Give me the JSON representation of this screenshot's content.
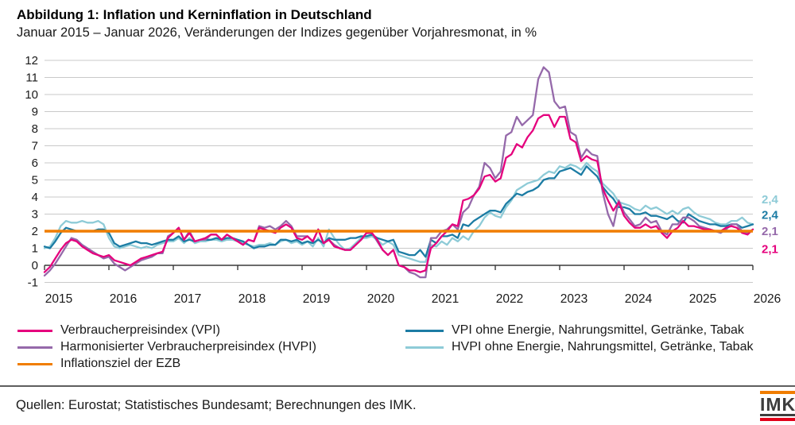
{
  "header": {
    "title": "Abbildung 1: Inflation und Kerninflation in Deutschland",
    "subtitle": "Januar 2015 – Januar 2026, Veränderungen der Indizes gegenüber Vorjahresmonat, in %"
  },
  "chart_data": {
    "type": "line",
    "x_unit": "month",
    "x_start": "Januar 2015",
    "x_end": "Januar 2026",
    "year_labels": [
      "2015",
      "2016",
      "2017",
      "2018",
      "2019",
      "2020",
      "2021",
      "2022",
      "2023",
      "2024",
      "2025",
      "2026"
    ],
    "yticks": [
      12,
      11,
      10,
      9,
      8,
      7,
      6,
      5,
      4,
      3,
      2,
      1,
      0,
      -1
    ],
    "ylim": [
      -1,
      12
    ],
    "grid": true,
    "colors": {
      "grid": "#c9c9c9",
      "axis": "#3a3a3a",
      "text": "#1a1a1a"
    },
    "target_line": {
      "label": "Inflationsziel der EZB",
      "value": 2,
      "color": "#f07d00"
    },
    "draw_order": [
      3,
      2,
      1,
      0
    ],
    "series": [
      {
        "name": "Verbraucherpreisindex (VPI)",
        "color": "#e5007d",
        "values": [
          -0.4,
          -0.1,
          0.4,
          0.9,
          1.3,
          1.5,
          1.4,
          1.1,
          0.9,
          0.7,
          0.6,
          0.5,
          0.6,
          0.3,
          0.2,
          0.1,
          0.0,
          0.2,
          0.4,
          0.5,
          0.6,
          0.7,
          0.8,
          1.6,
          1.9,
          2.2,
          1.5,
          1.9,
          1.4,
          1.5,
          1.6,
          1.8,
          1.8,
          1.5,
          1.8,
          1.6,
          1.4,
          1.2,
          1.5,
          1.4,
          2.2,
          2.1,
          2.0,
          1.9,
          2.2,
          2.4,
          2.2,
          1.6,
          1.5,
          1.7,
          1.4,
          2.1,
          1.3,
          1.5,
          1.1,
          1.0,
          0.9,
          0.9,
          1.2,
          1.5,
          1.9,
          1.9,
          1.5,
          0.9,
          0.6,
          0.9,
          0.0,
          -0.1,
          -0.3,
          -0.3,
          -0.4,
          -0.3,
          1.0,
          1.3,
          1.7,
          2.0,
          2.4,
          2.3,
          3.8,
          3.9,
          4.1,
          4.5,
          5.2,
          5.3,
          4.9,
          5.1,
          6.3,
          6.5,
          7.1,
          6.9,
          7.5,
          7.9,
          8.6,
          8.8,
          8.8,
          8.1,
          8.7,
          8.7,
          7.4,
          7.2,
          6.1,
          6.4,
          6.2,
          6.1,
          4.5,
          3.8,
          3.2,
          3.7,
          2.9,
          2.5,
          2.2,
          2.2,
          2.4,
          2.2,
          2.3,
          1.9,
          1.6,
          2.0,
          2.2,
          2.6,
          2.3,
          2.3,
          2.2,
          2.1,
          2.1,
          2.0,
          2.0,
          2.2,
          2.3,
          2.2,
          1.9,
          1.8,
          2.1
        ]
      },
      {
        "name": "Harmonisierter Verbraucherpreisindex (HVPI)",
        "color": "#9569aa",
        "values": [
          -0.6,
          -0.3,
          0.1,
          0.6,
          1.1,
          1.6,
          1.5,
          1.2,
          1.0,
          0.8,
          0.6,
          0.4,
          0.5,
          0.1,
          -0.1,
          -0.3,
          -0.1,
          0.1,
          0.3,
          0.4,
          0.5,
          0.7,
          0.7,
          1.7,
          1.9,
          2.2,
          1.5,
          2.0,
          1.4,
          1.5,
          1.5,
          1.8,
          1.8,
          1.5,
          1.8,
          1.6,
          1.4,
          1.2,
          1.5,
          1.4,
          2.3,
          2.2,
          2.3,
          2.1,
          2.3,
          2.6,
          2.3,
          1.7,
          1.7,
          1.7,
          1.4,
          2.1,
          1.3,
          1.5,
          1.2,
          1.0,
          0.9,
          0.9,
          1.2,
          1.5,
          1.9,
          1.9,
          1.4,
          0.9,
          0.6,
          0.9,
          0.0,
          -0.1,
          -0.4,
          -0.5,
          -0.7,
          -0.7,
          1.6,
          1.6,
          2.0,
          2.1,
          2.4,
          2.1,
          3.1,
          3.4,
          4.1,
          4.6,
          6.0,
          5.7,
          5.1,
          5.5,
          7.6,
          7.8,
          8.7,
          8.2,
          8.5,
          8.8,
          10.9,
          11.6,
          11.3,
          9.6,
          9.2,
          9.3,
          7.8,
          7.6,
          6.3,
          6.8,
          6.5,
          6.4,
          4.3,
          3.0,
          2.3,
          3.8,
          3.1,
          2.7,
          2.3,
          2.4,
          2.8,
          2.5,
          2.6,
          2.0,
          1.8,
          2.4,
          2.4,
          2.8,
          2.8,
          2.6,
          2.3,
          2.2,
          2.1,
          2.0,
          1.9,
          2.1,
          2.4,
          2.4,
          2.0,
          1.9,
          2.1
        ]
      },
      {
        "name": "VPI ohne Energie, Nahrungsmittel, Getränke, Tabak",
        "color": "#1c7ca4",
        "values": [
          1.1,
          1.0,
          1.4,
          1.9,
          2.2,
          2.1,
          2.0,
          2.0,
          2.0,
          2.0,
          2.1,
          2.1,
          1.9,
          1.3,
          1.1,
          1.2,
          1.3,
          1.4,
          1.3,
          1.3,
          1.2,
          1.3,
          1.4,
          1.5,
          1.5,
          1.7,
          1.4,
          1.5,
          1.4,
          1.5,
          1.5,
          1.5,
          1.6,
          1.5,
          1.6,
          1.6,
          1.5,
          1.4,
          1.2,
          1.0,
          1.1,
          1.1,
          1.2,
          1.2,
          1.5,
          1.5,
          1.4,
          1.5,
          1.3,
          1.4,
          1.3,
          1.5,
          1.3,
          1.6,
          1.5,
          1.5,
          1.5,
          1.6,
          1.6,
          1.7,
          1.7,
          1.8,
          1.6,
          1.5,
          1.4,
          1.5,
          0.8,
          0.7,
          0.6,
          0.6,
          0.9,
          0.5,
          1.5,
          1.3,
          1.7,
          1.7,
          1.8,
          1.6,
          2.4,
          2.3,
          2.6,
          2.8,
          3.0,
          3.2,
          3.2,
          3.1,
          3.6,
          3.9,
          4.2,
          4.1,
          4.3,
          4.4,
          4.6,
          5.0,
          5.1,
          5.1,
          5.5,
          5.6,
          5.7,
          5.5,
          5.3,
          5.8,
          5.5,
          5.2,
          4.6,
          4.2,
          3.9,
          3.4,
          3.4,
          3.3,
          3.0,
          3.0,
          3.1,
          2.9,
          2.9,
          2.8,
          2.7,
          2.9,
          2.6,
          2.5,
          3.0,
          2.8,
          2.6,
          2.5,
          2.4,
          2.4,
          2.3,
          2.3,
          2.4,
          2.4,
          2.2,
          2.3,
          2.4
        ]
      },
      {
        "name": "HVPI ohne Energie, Nahrungsmittel, Getränke, Tabak",
        "color": "#8ecbd7",
        "values": [
          1.0,
          1.1,
          1.6,
          2.3,
          2.6,
          2.5,
          2.5,
          2.6,
          2.5,
          2.5,
          2.6,
          2.4,
          1.6,
          1.1,
          1.0,
          1.1,
          1.2,
          1.1,
          1.0,
          1.1,
          1.0,
          1.2,
          1.3,
          1.4,
          1.4,
          1.6,
          1.3,
          1.6,
          1.3,
          1.4,
          1.4,
          1.5,
          1.5,
          1.4,
          1.5,
          1.5,
          1.4,
          1.3,
          1.2,
          1.1,
          1.2,
          1.2,
          1.3,
          1.2,
          1.4,
          1.5,
          1.3,
          1.4,
          1.2,
          1.4,
          1.1,
          1.6,
          1.1,
          2.1,
          1.6,
          1.2,
          0.9,
          1.0,
          1.3,
          1.6,
          1.6,
          1.7,
          1.5,
          1.2,
          1.4,
          1.2,
          0.6,
          0.5,
          0.4,
          0.3,
          0.2,
          0.2,
          1.2,
          1.1,
          1.4,
          1.2,
          1.6,
          1.4,
          1.7,
          1.5,
          2.0,
          2.3,
          2.8,
          3.1,
          2.9,
          2.8,
          3.4,
          3.8,
          4.4,
          4.6,
          4.8,
          4.9,
          5.0,
          5.3,
          5.5,
          5.4,
          5.8,
          5.7,
          5.9,
          5.8,
          5.6,
          6.0,
          5.7,
          5.5,
          4.8,
          4.5,
          4.2,
          3.7,
          3.6,
          3.5,
          3.3,
          3.2,
          3.5,
          3.3,
          3.4,
          3.2,
          3.0,
          3.2,
          3.0,
          3.3,
          3.4,
          3.1,
          2.9,
          2.8,
          2.7,
          2.5,
          2.4,
          2.4,
          2.6,
          2.6,
          2.8,
          2.5,
          2.4
        ]
      }
    ],
    "end_labels": [
      {
        "text": "2,4",
        "color": "#8ecbd7",
        "at": 3.85
      },
      {
        "text": "2,4",
        "color": "#1c7ca4",
        "at": 2.95
      },
      {
        "text": "2,1",
        "color": "#9569aa",
        "at": 2.0
      },
      {
        "text": "2,1",
        "color": "#e5007d",
        "at": 0.95
      }
    ]
  },
  "legend": {
    "left": [
      {
        "label": "Verbraucherpreisindex (VPI)",
        "color": "#e5007d"
      },
      {
        "label": "Harmonisierter Verbraucherpreisindex (HVPI)",
        "color": "#9569aa"
      },
      {
        "label": "Inflationsziel der EZB",
        "color": "#f07d00"
      }
    ],
    "right": [
      {
        "label": "VPI ohne Energie, Nahrungsmittel, Getränke, Tabak",
        "color": "#1c7ca4"
      },
      {
        "label": "HVPI ohne Energie, Nahrungsmittel, Getränke, Tabak",
        "color": "#8ecbd7"
      }
    ]
  },
  "footer": {
    "sources": "Quellen: Eurostat; Statistisches Bundesamt; Berechnungen des IMK.",
    "logo_text": "IMK"
  }
}
